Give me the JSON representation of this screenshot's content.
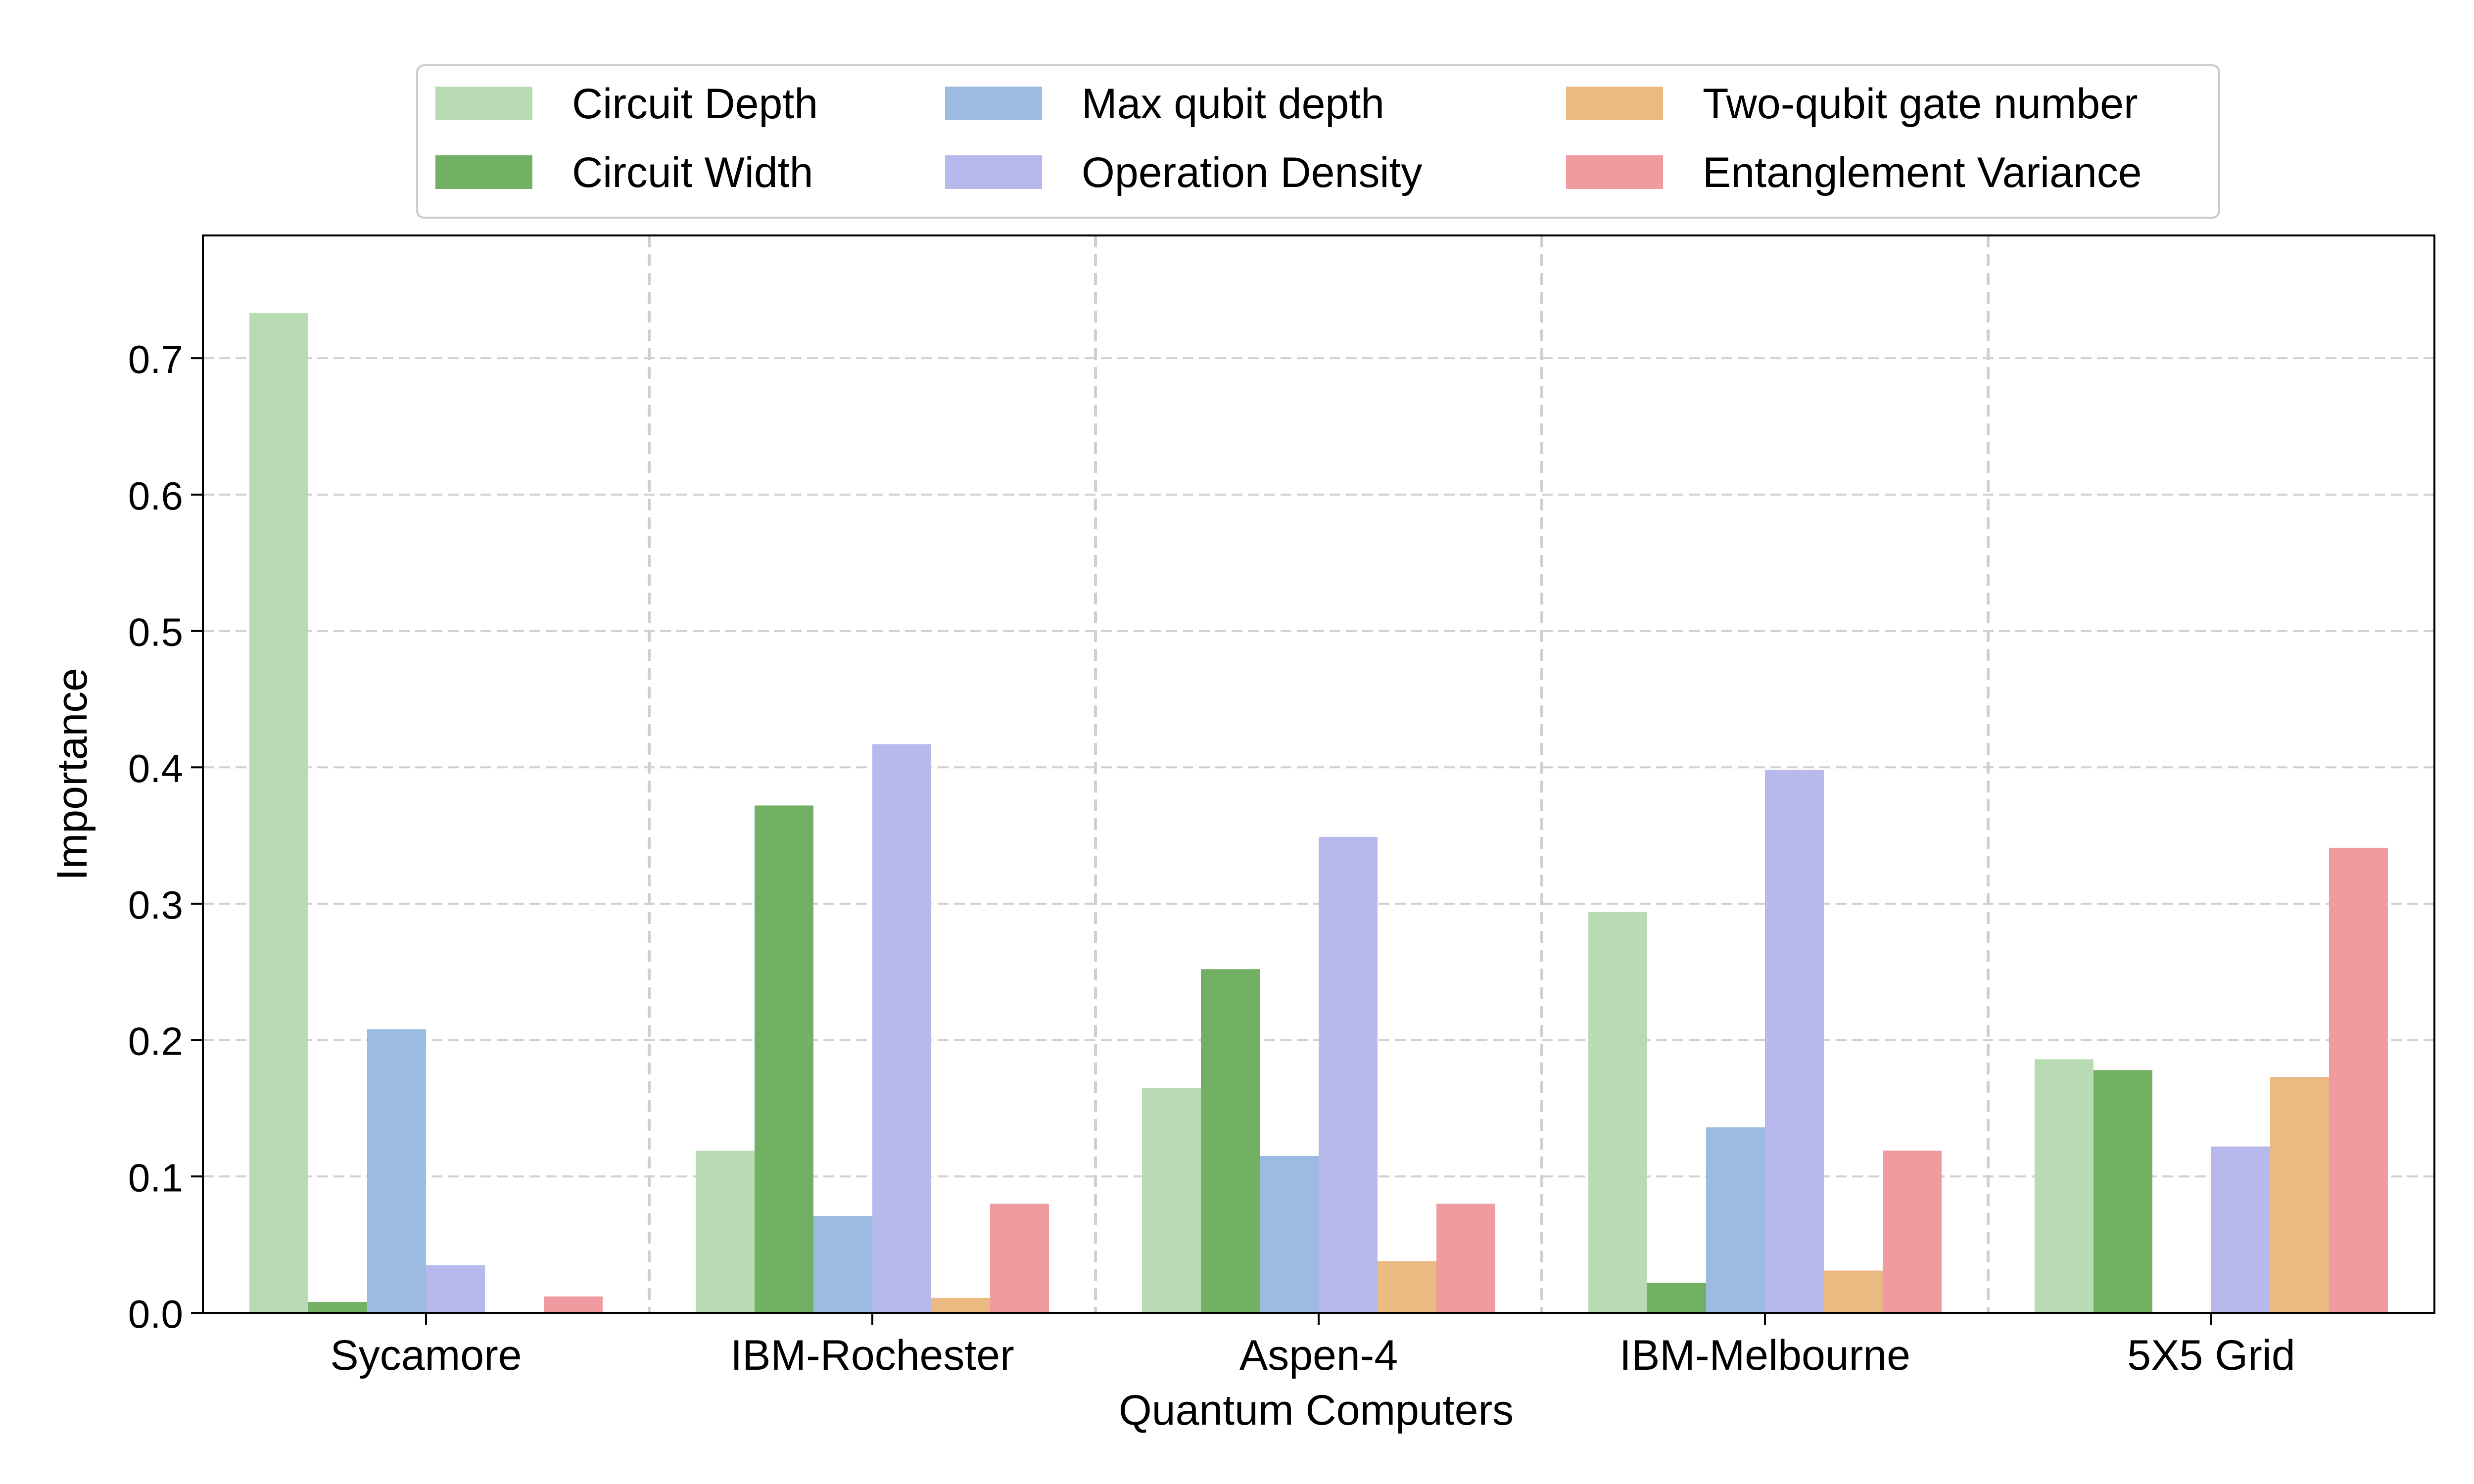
{
  "chart_data": {
    "type": "bar",
    "title": "",
    "xlabel": "Quantum Computers",
    "ylabel": "Importance",
    "ylim": [
      0,
      0.79
    ],
    "yticks": [
      0.0,
      0.1,
      0.2,
      0.3,
      0.4,
      0.5,
      0.6,
      0.7
    ],
    "ytick_labels": [
      "0.0",
      "0.1",
      "0.2",
      "0.3",
      "0.4",
      "0.5",
      "0.6",
      "0.7"
    ],
    "grid": "y-dashed",
    "group_separators": "dashed",
    "legend_position": "top-center",
    "categories": [
      "Sycamore",
      "IBM-Rochester",
      "Aspen-4",
      "IBM-Melbourne",
      "5X5 Grid"
    ],
    "series": [
      {
        "name": "Circuit Depth",
        "color": "#b9dbb4",
        "values": [
          0.733,
          0.119,
          0.165,
          0.294,
          0.186
        ]
      },
      {
        "name": "Circuit Width",
        "color": "#72b063",
        "values": [
          0.008,
          0.372,
          0.252,
          0.022,
          0.178
        ]
      },
      {
        "name": "Max qubit depth",
        "color": "#9bbbe1",
        "values": [
          0.208,
          0.071,
          0.115,
          0.136,
          0.0
        ]
      },
      {
        "name": "Operation Density",
        "color": "#b7b8eb",
        "values": [
          0.035,
          0.417,
          0.349,
          0.398,
          0.122
        ]
      },
      {
        "name": "Two-qubit gate number",
        "color": "#ebba82",
        "values": [
          0.0,
          0.011,
          0.038,
          0.031,
          0.173
        ]
      },
      {
        "name": "Entanglement Variance",
        "color": "#f09ba0",
        "values": [
          0.012,
          0.08,
          0.08,
          0.119,
          0.341
        ]
      }
    ]
  }
}
